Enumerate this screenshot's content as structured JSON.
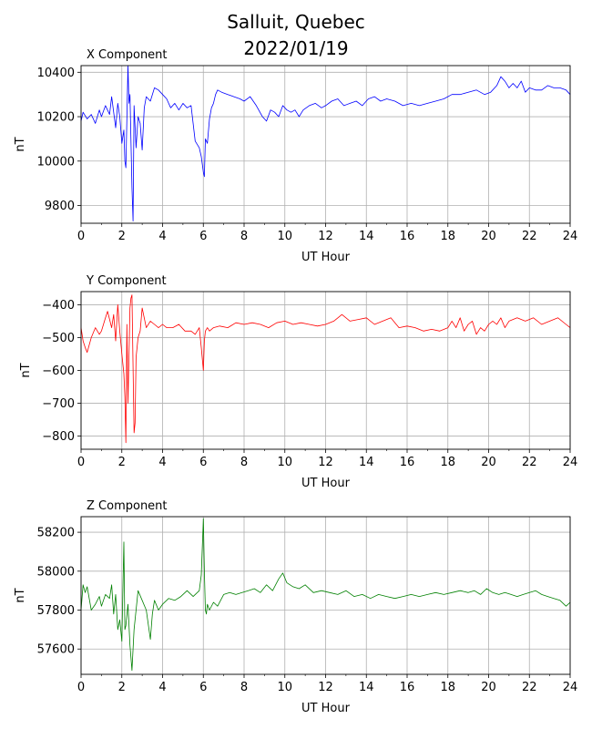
{
  "figure": {
    "title_line1": "Salluit, Quebec",
    "title_line2": "2022/01/19"
  },
  "chart_data": [
    {
      "type": "line",
      "title": "X Component",
      "xlabel": "UT Hour",
      "ylabel": "nT",
      "color": "#0000ff",
      "xlim": [
        0,
        24
      ],
      "ylim": [
        9720,
        10430
      ],
      "xticks": [
        0,
        2,
        4,
        6,
        8,
        10,
        12,
        14,
        16,
        18,
        20,
        22,
        24
      ],
      "yticks": [
        9800,
        10000,
        10200,
        10400
      ],
      "grid": true,
      "series": [
        {
          "x": [
            0,
            0.1,
            0.3,
            0.5,
            0.7,
            0.9,
            1.0,
            1.2,
            1.4,
            1.5,
            1.7,
            1.8,
            1.9,
            2.0,
            2.1,
            2.15,
            2.2,
            2.3,
            2.35,
            2.4,
            2.5,
            2.55,
            2.6,
            2.7,
            2.8,
            2.9,
            3.0,
            3.1,
            3.2,
            3.4,
            3.6,
            3.8,
            4.0,
            4.2,
            4.4,
            4.6,
            4.8,
            5.0,
            5.2,
            5.4,
            5.6,
            5.8,
            5.9,
            6.0,
            6.05,
            6.1,
            6.2,
            6.3,
            6.4,
            6.5,
            6.6,
            6.7,
            6.9,
            7.2,
            7.5,
            7.8,
            8.0,
            8.3,
            8.6,
            8.9,
            9.1,
            9.3,
            9.5,
            9.7,
            9.9,
            10.1,
            10.3,
            10.5,
            10.7,
            10.9,
            11.2,
            11.5,
            11.8,
            12.0,
            12.3,
            12.6,
            12.9,
            13.2,
            13.5,
            13.8,
            14.1,
            14.4,
            14.7,
            15.0,
            15.4,
            15.8,
            16.2,
            16.6,
            17.0,
            17.4,
            17.8,
            18.2,
            18.6,
            19.0,
            19.4,
            19.8,
            20.1,
            20.4,
            20.6,
            20.8,
            21.0,
            21.2,
            21.4,
            21.6,
            21.8,
            22.0,
            22.3,
            22.6,
            22.9,
            23.2,
            23.5,
            23.8,
            24.0
          ],
          "y": [
            10180,
            10220,
            10190,
            10210,
            10170,
            10230,
            10200,
            10250,
            10210,
            10290,
            10150,
            10260,
            10200,
            10080,
            10140,
            10000,
            9970,
            10430,
            10260,
            10300,
            9880,
            9730,
            10250,
            10060,
            10200,
            10170,
            10050,
            10240,
            10290,
            10270,
            10330,
            10320,
            10300,
            10280,
            10240,
            10260,
            10230,
            10260,
            10240,
            10250,
            10090,
            10060,
            10020,
            9950,
            9930,
            10100,
            10080,
            10190,
            10240,
            10260,
            10300,
            10320,
            10310,
            10300,
            10290,
            10280,
            10270,
            10290,
            10250,
            10200,
            10180,
            10230,
            10220,
            10200,
            10250,
            10230,
            10220,
            10230,
            10200,
            10230,
            10250,
            10260,
            10240,
            10250,
            10270,
            10280,
            10250,
            10260,
            10270,
            10250,
            10280,
            10290,
            10270,
            10280,
            10270,
            10250,
            10260,
            10250,
            10260,
            10270,
            10280,
            10300,
            10300,
            10310,
            10320,
            10300,
            10310,
            10340,
            10380,
            10360,
            10330,
            10350,
            10330,
            10360,
            10310,
            10330,
            10320,
            10320,
            10340,
            10330,
            10330,
            10320,
            10300
          ]
        }
      ]
    },
    {
      "type": "line",
      "title": "Y Component",
      "xlabel": "UT Hour",
      "ylabel": "nT",
      "color": "#ff0000",
      "xlim": [
        0,
        24
      ],
      "ylim": [
        -840,
        -360
      ],
      "xticks": [
        0,
        2,
        4,
        6,
        8,
        10,
        12,
        14,
        16,
        18,
        20,
        22,
        24
      ],
      "yticks": [
        -800,
        -700,
        -600,
        -500,
        -400
      ],
      "grid": true,
      "series": [
        {
          "x": [
            0,
            0.1,
            0.2,
            0.3,
            0.5,
            0.7,
            0.9,
            1.0,
            1.1,
            1.2,
            1.3,
            1.5,
            1.6,
            1.7,
            1.8,
            1.9,
            2.0,
            2.1,
            2.15,
            2.2,
            2.25,
            2.3,
            2.4,
            2.45,
            2.5,
            2.6,
            2.65,
            2.7,
            2.8,
            2.9,
            3.0,
            3.2,
            3.4,
            3.6,
            3.8,
            4.0,
            4.2,
            4.5,
            4.8,
            5.1,
            5.4,
            5.6,
            5.8,
            5.9,
            6.0,
            6.05,
            6.1,
            6.2,
            6.3,
            6.5,
            6.8,
            7.2,
            7.6,
            8.0,
            8.4,
            8.8,
            9.2,
            9.6,
            10.0,
            10.4,
            10.8,
            11.2,
            11.6,
            12.0,
            12.4,
            12.8,
            13.2,
            13.6,
            14.0,
            14.4,
            14.8,
            15.2,
            15.6,
            16.0,
            16.4,
            16.8,
            17.2,
            17.6,
            18.0,
            18.2,
            18.4,
            18.6,
            18.8,
            19.0,
            19.2,
            19.4,
            19.6,
            19.8,
            20.0,
            20.2,
            20.4,
            20.6,
            20.8,
            21.0,
            21.4,
            21.8,
            22.2,
            22.6,
            23.0,
            23.4,
            23.8,
            24.0
          ],
          "y": [
            -470,
            -510,
            -530,
            -545,
            -500,
            -470,
            -490,
            -480,
            -460,
            -440,
            -420,
            -470,
            -430,
            -510,
            -400,
            -480,
            -550,
            -610,
            -680,
            -820,
            -460,
            -700,
            -410,
            -380,
            -370,
            -790,
            -760,
            -560,
            -500,
            -480,
            -410,
            -470,
            -450,
            -460,
            -470,
            -460,
            -470,
            -470,
            -460,
            -480,
            -480,
            -490,
            -470,
            -530,
            -600,
            -510,
            -480,
            -470,
            -480,
            -470,
            -465,
            -470,
            -455,
            -460,
            -455,
            -460,
            -470,
            -455,
            -450,
            -460,
            -455,
            -460,
            -465,
            -460,
            -450,
            -430,
            -450,
            -445,
            -440,
            -460,
            -450,
            -440,
            -470,
            -465,
            -470,
            -480,
            -475,
            -480,
            -470,
            -450,
            -470,
            -440,
            -480,
            -460,
            -450,
            -490,
            -470,
            -480,
            -460,
            -450,
            -460,
            -440,
            -470,
            -450,
            -440,
            -450,
            -440,
            -460,
            -450,
            -440,
            -460,
            -470
          ]
        }
      ]
    },
    {
      "type": "line",
      "title": "Z Component",
      "xlabel": "UT Hour",
      "ylabel": "nT",
      "color": "#008000",
      "xlim": [
        0,
        24
      ],
      "ylim": [
        57470,
        58280
      ],
      "xticks": [
        0,
        2,
        4,
        6,
        8,
        10,
        12,
        14,
        16,
        18,
        20,
        22,
        24
      ],
      "yticks": [
        57600,
        57800,
        58000,
        58200
      ],
      "grid": true,
      "series": [
        {
          "x": [
            0,
            0.1,
            0.2,
            0.3,
            0.5,
            0.7,
            0.9,
            1.0,
            1.2,
            1.4,
            1.5,
            1.6,
            1.7,
            1.8,
            1.9,
            2.0,
            2.05,
            2.1,
            2.15,
            2.2,
            2.3,
            2.4,
            2.5,
            2.6,
            2.7,
            2.8,
            3.0,
            3.2,
            3.4,
            3.5,
            3.6,
            3.8,
            4.0,
            4.3,
            4.6,
            4.9,
            5.2,
            5.5,
            5.8,
            5.9,
            6.0,
            6.05,
            6.1,
            6.15,
            6.2,
            6.3,
            6.5,
            6.7,
            7.0,
            7.3,
            7.6,
            7.9,
            8.2,
            8.5,
            8.8,
            9.1,
            9.4,
            9.7,
            9.9,
            10.1,
            10.4,
            10.7,
            11.0,
            11.4,
            11.8,
            12.2,
            12.6,
            13.0,
            13.4,
            13.8,
            14.2,
            14.6,
            15.0,
            15.4,
            15.8,
            16.2,
            16.6,
            17.0,
            17.4,
            17.8,
            18.2,
            18.6,
            19.0,
            19.3,
            19.6,
            19.9,
            20.2,
            20.5,
            20.8,
            21.1,
            21.4,
            21.7,
            22.0,
            22.3,
            22.6,
            22.9,
            23.2,
            23.5,
            23.8,
            24.0
          ],
          "y": [
            57800,
            57930,
            57890,
            57920,
            57800,
            57830,
            57870,
            57820,
            57880,
            57860,
            57930,
            57780,
            57880,
            57700,
            57750,
            57640,
            57900,
            58150,
            57700,
            57720,
            57830,
            57620,
            57490,
            57700,
            57800,
            57900,
            57850,
            57800,
            57650,
            57780,
            57850,
            57800,
            57830,
            57860,
            57850,
            57870,
            57900,
            57870,
            57900,
            57980,
            58270,
            58000,
            57800,
            57780,
            57830,
            57800,
            57840,
            57820,
            57880,
            57890,
            57880,
            57890,
            57900,
            57910,
            57890,
            57930,
            57900,
            57960,
            57990,
            57940,
            57920,
            57910,
            57930,
            57890,
            57900,
            57890,
            57880,
            57900,
            57870,
            57880,
            57860,
            57880,
            57870,
            57860,
            57870,
            57880,
            57870,
            57880,
            57890,
            57880,
            57890,
            57900,
            57890,
            57900,
            57880,
            57910,
            57890,
            57880,
            57890,
            57880,
            57870,
            57880,
            57890,
            57900,
            57880,
            57870,
            57860,
            57850,
            57820,
            57840
          ]
        }
      ]
    }
  ]
}
